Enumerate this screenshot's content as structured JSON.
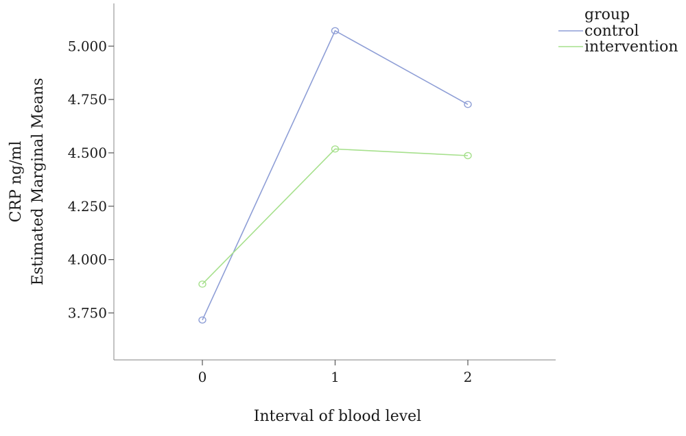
{
  "chart_data": {
    "type": "line",
    "xlabel": "Interval of blood level",
    "ylabel_lines": [
      "CRP ng/ml",
      "Estimated Marginal Means"
    ],
    "categories": [
      "0",
      "1",
      "2"
    ],
    "y_ticks": [
      3.75,
      4.0,
      4.25,
      4.5,
      4.75,
      5.0
    ],
    "y_tick_labels": [
      "3.750",
      "4.000",
      "4.250",
      "4.500",
      "4.750",
      "5.000"
    ],
    "ylim": [
      3.53,
      5.2
    ],
    "legend": {
      "title": "group",
      "position": "top-right"
    },
    "series": [
      {
        "name": "control",
        "color": "#8e9ed6",
        "values": [
          3.717,
          5.072,
          4.727
        ]
      },
      {
        "name": "intervention",
        "color": "#a6e08c",
        "values": [
          3.885,
          4.518,
          4.487
        ]
      }
    ],
    "grid": false
  }
}
